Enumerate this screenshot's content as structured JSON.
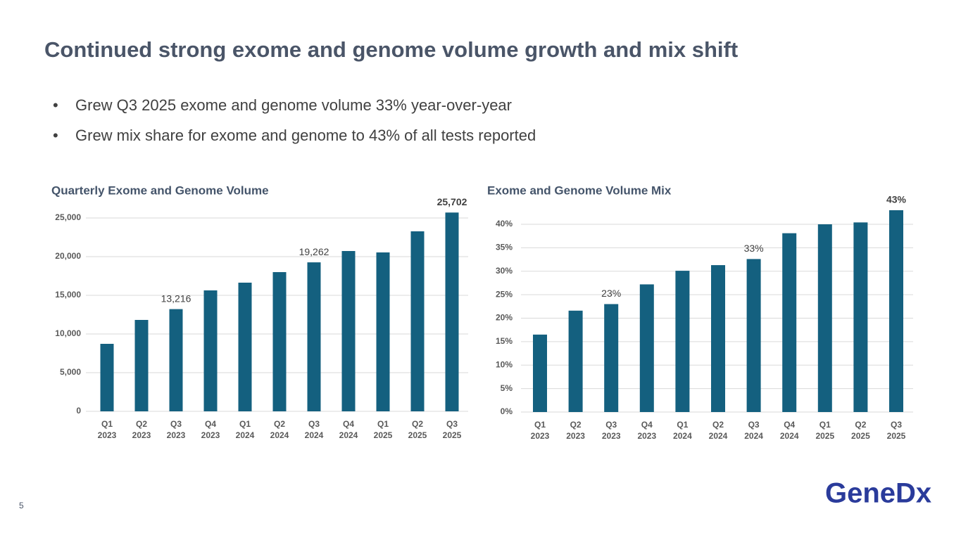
{
  "title": "Continued strong exome and genome volume growth and mix shift",
  "bullets": [
    "Grew Q3 2025 exome and genome volume 33% year-over-year",
    "Grew mix share for exome and genome to 43% of all tests reported"
  ],
  "page_number": "5",
  "logo": "GeneDx",
  "chart_data": [
    {
      "type": "bar",
      "title": "Quarterly Exome and Genome Volume",
      "categories": [
        "Q1 2023",
        "Q2 2023",
        "Q3 2023",
        "Q4 2023",
        "Q1 2024",
        "Q2 2024",
        "Q3 2024",
        "Q4 2024",
        "Q1 2025",
        "Q2 2025",
        "Q3 2025"
      ],
      "values": [
        8727,
        11818,
        13216,
        15636,
        16636,
        18000,
        19262,
        20727,
        20545,
        23272,
        25702
      ],
      "value_labels": [
        null,
        null,
        "13,216",
        null,
        null,
        null,
        "19,262",
        null,
        null,
        null,
        "25,702"
      ],
      "color": "#14607f",
      "ylim": [
        0,
        25000
      ],
      "yticks": [
        0,
        {
          "value": 5000,
          "label": "5,000"
        },
        {
          "value": 10000,
          "label": "10,000"
        },
        {
          "value": 15000,
          "label": "15,000"
        },
        {
          "value": 20000,
          "label": "20,000"
        },
        {
          "value": 25000,
          "label": "25,000"
        }
      ],
      "grid": true
    },
    {
      "type": "bar",
      "title": "Exome and Genome Volume Mix",
      "categories": [
        "Q1 2023",
        "Q2 2023",
        "Q3 2023",
        "Q4 2023",
        "Q1 2024",
        "Q2 2024",
        "Q3 2024",
        "Q4 2024",
        "Q1 2025",
        "Q2 2025",
        "Q3 2025"
      ],
      "values": [
        16.5,
        21.6,
        23,
        27.2,
        30.1,
        31.3,
        32.6,
        38.1,
        40,
        40.4,
        43
      ],
      "value_labels": [
        null,
        null,
        "23%",
        null,
        null,
        null,
        "33%",
        null,
        null,
        null,
        "43%"
      ],
      "color": "#14607f",
      "ylim": [
        0,
        40
      ],
      "yticks": [
        {
          "value": 0,
          "label": "0%"
        },
        {
          "value": 5,
          "label": "5%"
        },
        {
          "value": 10,
          "label": "10%"
        },
        {
          "value": 15,
          "label": "15%"
        },
        {
          "value": 20,
          "label": "20%"
        },
        {
          "value": 25,
          "label": "25%"
        },
        {
          "value": 30,
          "label": "30%"
        },
        {
          "value": 35,
          "label": "35%"
        },
        {
          "value": 40,
          "label": "40%"
        }
      ],
      "grid": true
    }
  ]
}
